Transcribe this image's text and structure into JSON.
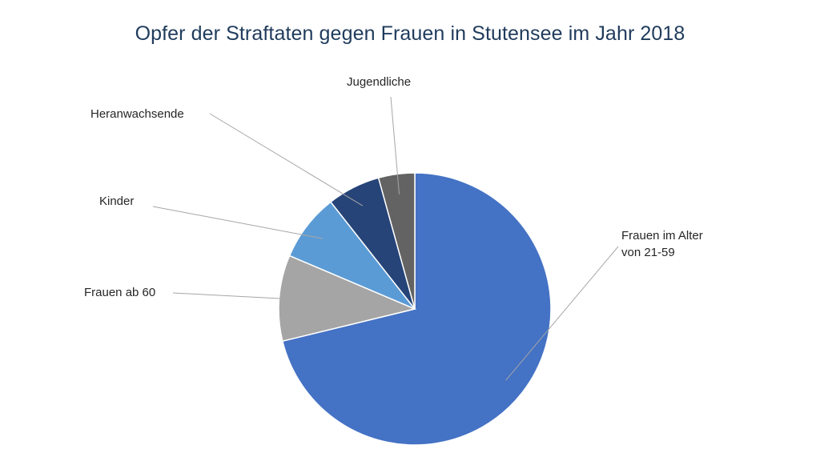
{
  "chart_data": {
    "type": "pie",
    "title": "Opfer der Straftaten gegen Frauen in Stutensee im Jahr 2018",
    "start_angle_deg": 0,
    "direction": "clockwise",
    "slices": [
      {
        "label_lines": [
          "Frauen im Alter",
          "von 21-59"
        ],
        "value": 71.2,
        "color": "#4472c4"
      },
      {
        "label_lines": [
          "Frauen ab 60"
        ],
        "value": 10.2,
        "color": "#a5a5a5"
      },
      {
        "label_lines": [
          "Kinder"
        ],
        "value": 8.0,
        "color": "#5b9bd5"
      },
      {
        "label_lines": [
          "Heranwachsende"
        ],
        "value": 6.3,
        "color": "#264478"
      },
      {
        "label_lines": [
          "Jugendliche"
        ],
        "value": 4.3,
        "color": "#636363"
      }
    ],
    "legend": "none",
    "data_labels": "outside-with-leader-lines"
  }
}
